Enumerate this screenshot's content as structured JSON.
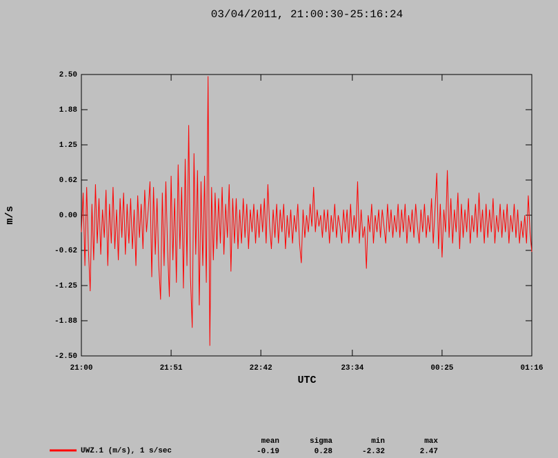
{
  "chart_data": {
    "type": "line",
    "title": "03/04/2011, 21:00:30-25:16:24",
    "x_label": "UTC",
    "y_label": "m/s",
    "x": [
      0,
      1,
      2,
      3,
      4,
      5,
      6,
      7,
      8,
      9,
      10,
      11,
      12,
      13,
      14,
      15,
      16,
      17,
      18,
      19,
      20,
      21,
      22,
      23,
      24,
      25,
      26,
      27,
      28,
      29,
      30,
      31,
      32,
      33,
      34,
      35,
      36,
      37,
      38,
      39,
      40,
      41,
      42,
      43,
      44,
      45,
      46,
      47,
      48,
      49,
      50,
      51,
      52,
      53,
      54,
      55,
      56,
      57,
      58,
      59,
      60,
      61,
      62,
      63,
      64,
      65,
      66,
      67,
      68,
      69,
      70,
      71,
      72,
      73,
      74,
      75,
      76,
      77,
      78,
      79,
      80,
      81,
      82,
      83,
      84,
      85,
      86,
      87,
      88,
      89,
      90,
      91,
      92,
      93,
      94,
      95,
      96,
      97,
      98,
      99,
      100,
      101,
      102,
      103,
      104,
      105,
      106,
      107,
      108,
      109,
      110,
      111,
      112,
      113,
      114,
      115,
      116,
      117,
      118,
      119,
      120,
      121,
      122,
      123,
      124,
      125,
      126,
      127,
      128,
      129,
      130,
      131,
      132,
      133,
      134,
      135,
      136,
      137,
      138,
      139,
      140,
      141,
      142,
      143,
      144,
      145,
      146,
      147,
      148,
      149,
      150,
      151,
      152,
      153,
      154,
      155,
      156,
      157,
      158,
      159,
      160,
      161,
      162,
      163,
      164,
      165,
      166,
      167,
      168,
      169,
      170,
      171,
      172,
      173,
      174,
      175,
      176,
      177,
      178,
      179,
      180,
      181,
      182,
      183,
      184,
      185,
      186,
      187,
      188,
      189,
      190,
      191,
      192,
      193,
      194,
      195,
      196,
      197,
      198,
      199,
      200,
      201,
      202,
      203,
      204,
      205,
      206,
      207,
      208,
      209,
      210,
      211,
      212,
      213,
      214,
      215,
      216,
      217,
      218,
      219,
      220,
      221,
      222,
      223,
      224,
      225,
      226,
      227,
      228,
      229,
      230,
      231,
      232,
      233,
      234,
      235,
      236,
      237,
      238,
      239,
      240,
      241,
      242,
      243,
      244,
      245,
      246,
      247,
      248,
      249,
      250,
      251,
      252,
      253,
      254,
      255,
      256
    ],
    "series": [
      {
        "name": "UWZ.1 (m/s), 1 s/sec",
        "color": "#ff0000",
        "values": [
          -0.3,
          0.4,
          -0.9,
          0.5,
          -0.6,
          -1.35,
          0.2,
          -0.8,
          0.55,
          -0.5,
          0.3,
          -0.7,
          0.1,
          -0.4,
          0.45,
          -0.9,
          0.2,
          -0.5,
          0.5,
          -0.6,
          0.1,
          -0.8,
          0.3,
          -0.4,
          0.4,
          -0.7,
          0.2,
          -0.5,
          0.3,
          -0.6,
          0.1,
          -0.9,
          0.35,
          -0.4,
          0.2,
          -0.6,
          0.45,
          -0.3,
          0.1,
          0.6,
          -1.1,
          0.5,
          -0.7,
          0.3,
          -0.9,
          -1.5,
          0.4,
          -0.9,
          0.6,
          -0.6,
          -1.45,
          0.7,
          -0.8,
          0.3,
          -1.2,
          0.9,
          -0.6,
          0.5,
          -1.3,
          1.0,
          -0.9,
          1.6,
          -1.1,
          -2.0,
          1.1,
          -0.7,
          0.8,
          -1.6,
          0.6,
          -0.9,
          0.7,
          -1.2,
          2.47,
          -2.32,
          0.5,
          -0.8,
          0.4,
          -0.6,
          0.3,
          -0.5,
          0.5,
          -0.7,
          0.2,
          -0.4,
          0.55,
          -1.0,
          0.3,
          -0.5,
          0.3,
          -0.6,
          0.1,
          -0.5,
          0.3,
          -0.4,
          0.2,
          -0.6,
          0.1,
          -0.3,
          0.2,
          -0.5,
          0.1,
          -0.4,
          0.2,
          -0.3,
          0.3,
          -0.5,
          0.55,
          -0.2,
          -0.6,
          0.1,
          -0.4,
          0.2,
          -0.5,
          0.1,
          -0.3,
          0.2,
          -0.6,
          0.0,
          -0.4,
          0.1,
          -0.5,
          0.0,
          -0.3,
          0.2,
          -0.5,
          -0.85,
          0.1,
          -0.4,
          0.0,
          -0.3,
          0.2,
          -0.2,
          0.5,
          -0.3,
          0.1,
          -0.2,
          0.0,
          -0.4,
          0.1,
          -0.3,
          0.1,
          -0.5,
          0.0,
          -0.3,
          0.2,
          -0.4,
          0.0,
          -0.2,
          -0.5,
          0.1,
          -0.3,
          0.1,
          -0.5,
          0.2,
          -0.4,
          0.0,
          -0.3,
          0.6,
          -0.5,
          0.1,
          -0.4,
          -0.2,
          -0.95,
          0.0,
          -0.3,
          0.2,
          -0.5,
          0.0,
          -0.3,
          0.1,
          -0.4,
          0.1,
          -0.2,
          -0.5,
          0.2,
          -0.3,
          0.1,
          -0.4,
          0.0,
          -0.3,
          0.2,
          -0.4,
          0.1,
          -0.3,
          0.2,
          -0.5,
          0.0,
          -0.3,
          0.1,
          -0.4,
          0.2,
          -0.2,
          -0.5,
          0.1,
          -0.3,
          0.2,
          -0.4,
          0.0,
          -0.3,
          0.3,
          -0.5,
          0.1,
          0.75,
          -0.6,
          0.2,
          -0.75,
          0.1,
          -0.3,
          0.8,
          -0.4,
          0.3,
          -0.5,
          0.1,
          -0.3,
          0.4,
          -0.6,
          0.2,
          -0.4,
          0.1,
          -0.3,
          0.3,
          -0.5,
          0.0,
          -0.3,
          0.2,
          -0.4,
          0.4,
          -0.3,
          0.1,
          -0.5,
          0.2,
          -0.4,
          0.1,
          -0.3,
          0.3,
          -0.5,
          0.0,
          -0.3,
          0.2,
          -0.4,
          0.1,
          -0.3,
          0.2,
          -0.5,
          0.0,
          -0.3,
          0.2,
          -0.4,
          0.1,
          -0.5,
          -0.1,
          -0.4,
          0.0,
          -0.5,
          0.35,
          -0.3,
          -0.65
        ]
      }
    ],
    "xlim": [
      0,
      256
    ],
    "xticks": [
      {
        "value": 0,
        "label": "21:00"
      },
      {
        "value": 51,
        "label": "21:51"
      },
      {
        "value": 102,
        "label": "22:42"
      },
      {
        "value": 154,
        "label": "23:34"
      },
      {
        "value": 205,
        "label": "00:25"
      },
      {
        "value": 256,
        "label": "01:16"
      }
    ],
    "ylim": [
      -2.5,
      2.5
    ],
    "yticks": [
      {
        "value": -2.5,
        "label": "-2.50"
      },
      {
        "value": -1.875,
        "label": "-1.88"
      },
      {
        "value": -1.25,
        "label": "-1.25"
      },
      {
        "value": -0.625,
        "label": "-0.62"
      },
      {
        "value": 0,
        "label": "0.00"
      },
      {
        "value": 0.625,
        "label": "0.62"
      },
      {
        "value": 1.25,
        "label": "1.25"
      },
      {
        "value": 1.875,
        "label": "1.88"
      },
      {
        "value": 2.5,
        "label": "2.50"
      }
    ],
    "stats": {
      "headers": [
        "mean",
        "sigma",
        "min",
        "max"
      ],
      "values": [
        -0.19,
        0.28,
        -2.32,
        2.47
      ]
    }
  }
}
